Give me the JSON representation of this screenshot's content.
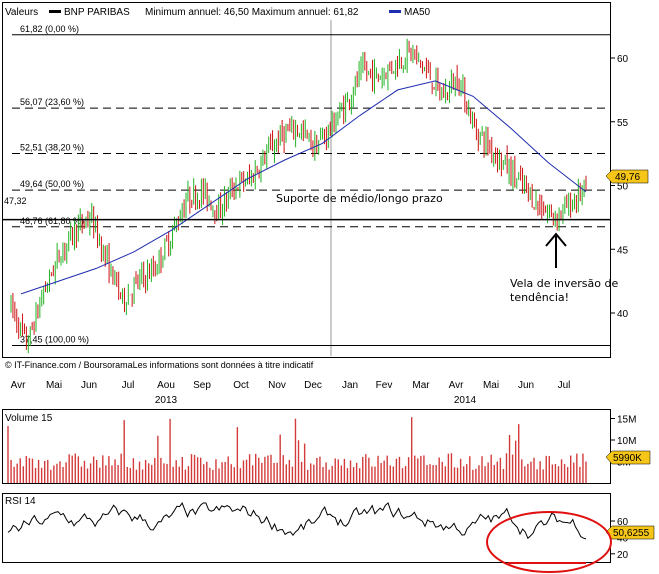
{
  "header": {
    "label_valeurs": "Valeurs",
    "legend_stock": "BNP PARIBAS",
    "stats": "Minimum annuel: 46,50 Maximum annuel: 61,82",
    "legend_ma": "MA50"
  },
  "colors": {
    "up": "#22b322",
    "down": "#cc1111",
    "ma": "#1f2db0",
    "price_box": "#f5c518",
    "volume_bar": "#d33b3b",
    "rsi_circle": "#e01010",
    "arrow": "#000000"
  },
  "fib_levels": [
    {
      "label": "61,82 (0,00 %)",
      "value": 61.82,
      "style": "solid"
    },
    {
      "label": "56,07 (23,60 %)",
      "value": 56.07,
      "style": "dashed"
    },
    {
      "label": "52,51 (38,20 %)",
      "value": 52.51,
      "style": "dashed"
    },
    {
      "label": "49,64 (50,00 %)",
      "value": 49.64,
      "style": "dashed"
    },
    {
      "label": "46,76 (61,80 %)",
      "value": 46.76,
      "style": "dashed"
    },
    {
      "label": "37,45 (100,00 %)",
      "value": 37.45,
      "style": "solid"
    }
  ],
  "support_line": {
    "label": "47,32",
    "value": 47.32
  },
  "annotations": {
    "support": "Suporte de médio/longo prazo",
    "reversal_line1": "Vela de inversão de",
    "reversal_line2": "tendência!"
  },
  "credit": "© IT-Finance.com / BoursoramaLes informations sont données à titre indicatif",
  "price_last": "49,76",
  "volume_label": "Volume 15",
  "volume_last": "5990K",
  "rsi_label": "RSI 14",
  "rsi_last": "50,6255",
  "chart_data": {
    "type": "candlestick",
    "title": "BNP PARIBAS",
    "months": [
      "Avr",
      "Mai",
      "Jun",
      "Jul",
      "Aou",
      "Sep",
      "Oct",
      "Nov",
      "Dec",
      "Jan",
      "Fev",
      "Mar",
      "Avr",
      "Mai",
      "Jun",
      "Jul"
    ],
    "years": [
      "2013",
      "2014"
    ],
    "price_axis": {
      "ticks": [
        40,
        45,
        50,
        55,
        60
      ],
      "ylim": [
        35.5,
        63.5
      ]
    },
    "price_path": [
      [
        "Avr",
        40.5
      ],
      [
        "Avr",
        37.5
      ],
      [
        "Avr",
        41.5
      ],
      [
        "Avr",
        44.5
      ],
      [
        "Mai",
        46.5
      ],
      [
        "Mai",
        47.5
      ],
      [
        "Jun",
        44.0
      ],
      [
        "Jun",
        41.0
      ],
      [
        "Jun",
        42.5
      ],
      [
        "Jul",
        43.5
      ],
      [
        "Jul",
        46.0
      ],
      [
        "Jul",
        49.0
      ],
      [
        "Aou",
        49.5
      ],
      [
        "Aou",
        48.0
      ],
      [
        "Sep",
        50.0
      ],
      [
        "Sep",
        50.5
      ],
      [
        "Oct",
        52.5
      ],
      [
        "Oct",
        54.0
      ],
      [
        "Nov",
        54.5
      ],
      [
        "Nov",
        53.0
      ],
      [
        "Dec",
        54.5
      ],
      [
        "Dec",
        56.5
      ],
      [
        "Jan",
        59.0
      ],
      [
        "Jan",
        58.5
      ],
      [
        "Fev",
        59.5
      ],
      [
        "Fev",
        60.5
      ],
      [
        "Mar",
        59.0
      ],
      [
        "Mar",
        57.0
      ],
      [
        "Avr",
        58.5
      ],
      [
        "Avr",
        54.5
      ],
      [
        "Mai",
        53.0
      ],
      [
        "Mai",
        51.5
      ],
      [
        "Jun",
        50.0
      ],
      [
        "Jun",
        48.5
      ],
      [
        "Jul",
        47.5
      ],
      [
        "Jul",
        48.5
      ],
      [
        "Jul",
        49.8
      ]
    ],
    "ma50_path": [
      [
        "Avr",
        41.5
      ],
      [
        "Mai",
        42.5
      ],
      [
        "Jun",
        43.5
      ],
      [
        "Jul",
        44.8
      ],
      [
        "Aou",
        46.5
      ],
      [
        "Sep",
        48.5
      ],
      [
        "Oct",
        50.5
      ],
      [
        "Nov",
        52.0
      ],
      [
        "Dec",
        53.3
      ],
      [
        "Jan",
        55.5
      ],
      [
        "Fev",
        57.5
      ],
      [
        "Mar",
        58.2
      ],
      [
        "Avr",
        57.0
      ],
      [
        "Mai",
        54.5
      ],
      [
        "Jun",
        51.8
      ],
      [
        "Jul",
        49.5
      ]
    ],
    "volume": {
      "ticks": [
        "5M",
        "10M",
        "15M"
      ],
      "ylim": [
        0,
        17
      ]
    },
    "rsi": {
      "ticks": [
        20,
        40,
        60
      ],
      "ylim": [
        10,
        90
      ]
    }
  }
}
